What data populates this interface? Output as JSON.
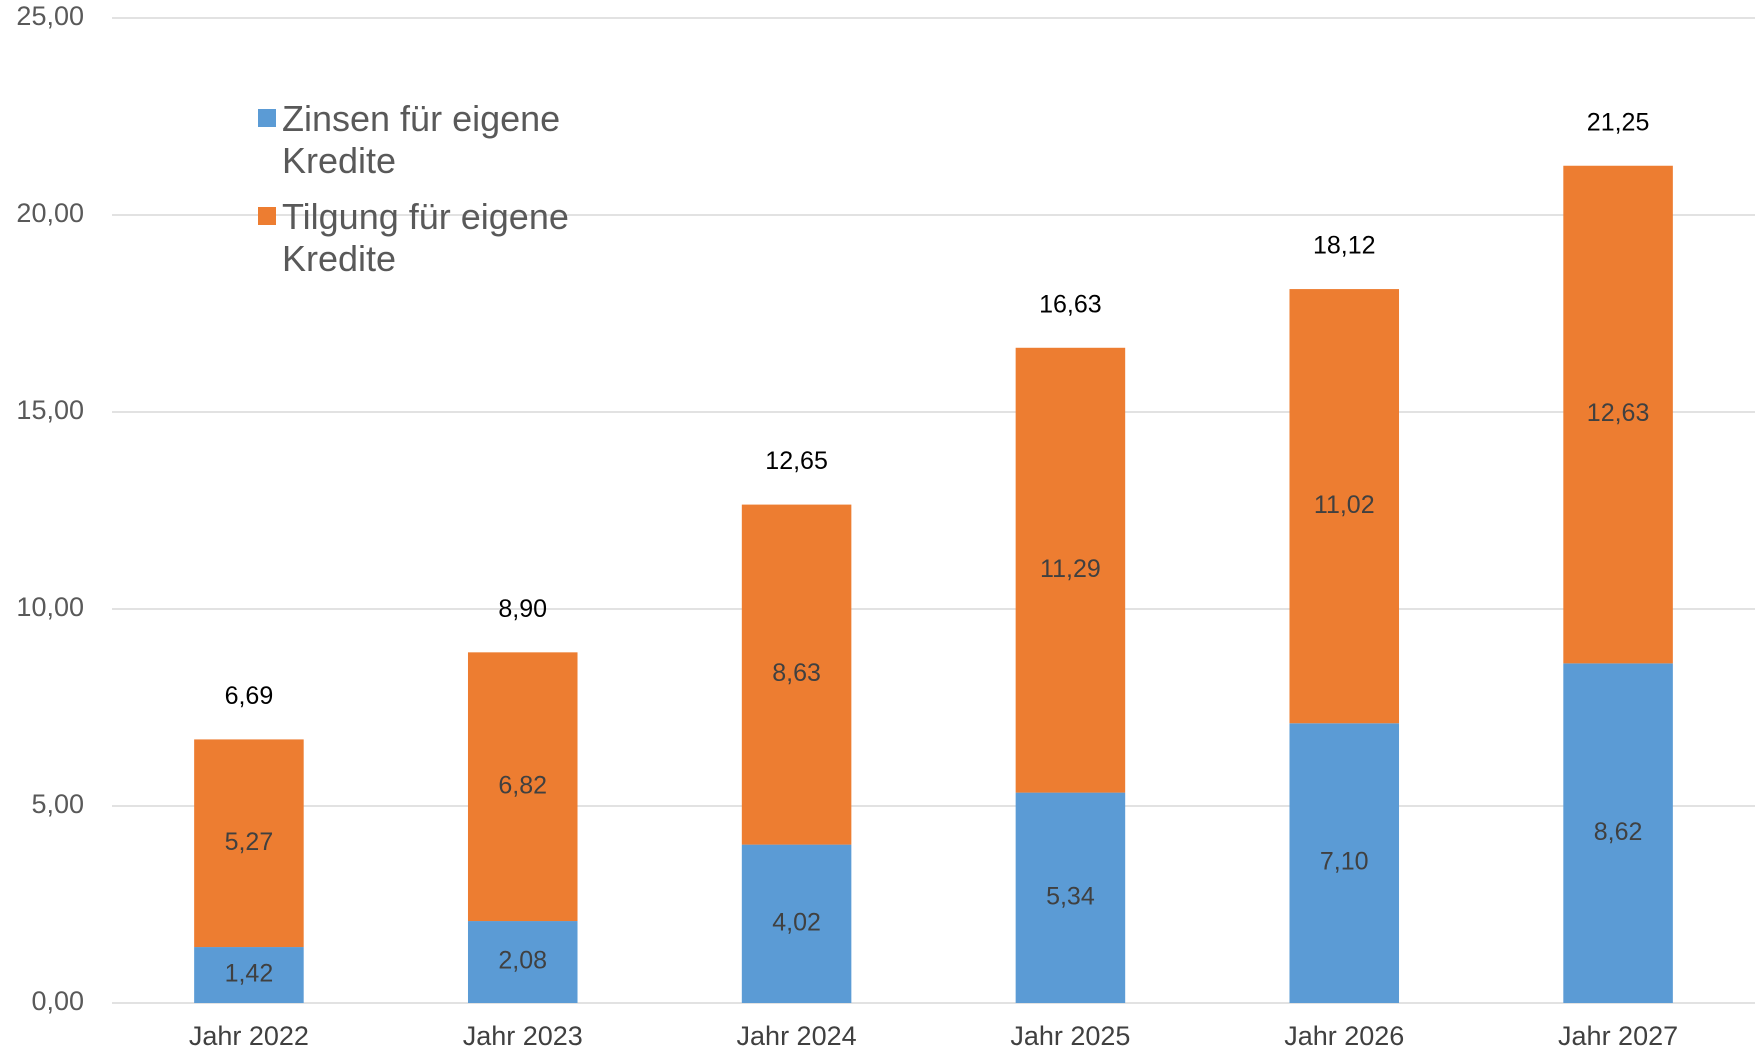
{
  "chart_data": {
    "type": "stacked_bar",
    "categories": [
      "Jahr 2022",
      "Jahr 2023",
      "Jahr 2024",
      "Jahr 2025",
      "Jahr 2026",
      "Jahr 2027"
    ],
    "series": [
      {
        "name": "Zinsen für eigene Kredite",
        "color": "#5b9bd5",
        "values": [
          1.42,
          2.08,
          4.02,
          5.34,
          7.1,
          8.62
        ],
        "value_labels": [
          "1,42",
          "2,08",
          "4,02",
          "5,34",
          "7,10",
          "8,62"
        ]
      },
      {
        "name": "Tilgung für eigene Kredite",
        "color": "#ed7d31",
        "values": [
          5.27,
          6.82,
          8.63,
          11.29,
          11.02,
          12.63
        ],
        "value_labels": [
          "5,27",
          "6,82",
          "8,63",
          "11,29",
          "11,02",
          "12,63"
        ]
      }
    ],
    "totals": [
      6.69,
      8.9,
      12.65,
      16.63,
      18.12,
      21.25
    ],
    "total_labels": [
      "6,69",
      "8,90",
      "12,65",
      "16,63",
      "18,12",
      "21,25"
    ],
    "ylim": [
      0,
      25
    ],
    "yticks": [
      {
        "value": 0,
        "label": "0,00"
      },
      {
        "value": 5,
        "label": "5,00"
      },
      {
        "value": 10,
        "label": "10,00"
      },
      {
        "value": 15,
        "label": "15,00"
      },
      {
        "value": 20,
        "label": "20,00"
      },
      {
        "value": 25,
        "label": "25,00"
      }
    ],
    "grid": true,
    "legend": "upper left"
  }
}
